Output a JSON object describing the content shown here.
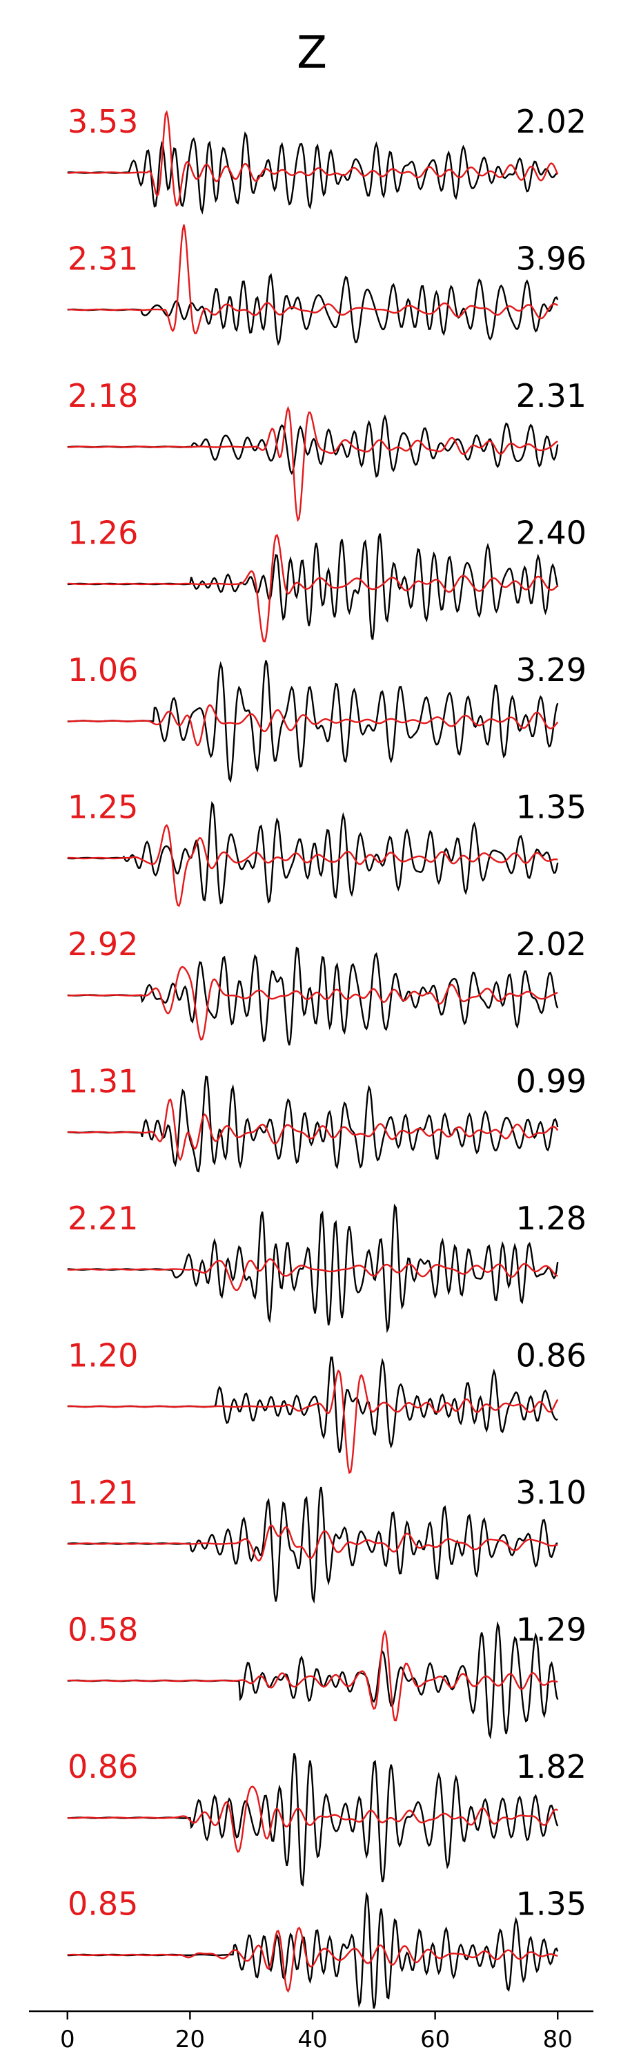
{
  "chart_data": {
    "type": "line",
    "title": "Z",
    "xlabel": "",
    "ylabel": "",
    "xlim": [
      -2,
      82
    ],
    "x_ticks": [
      0,
      20,
      40,
      60,
      80
    ],
    "grid": false,
    "legend": "none",
    "colors": {
      "synthetic": "#e41a1c",
      "observed": "#000000"
    },
    "traces": [
      {
        "left_value": "3.53",
        "right_value": "2.02",
        "red_onset": 13,
        "black_onset": 10,
        "red_peak_time": 14.5,
        "black_peak_time": 20.5
      },
      {
        "left_value": "2.31",
        "right_value": "3.96",
        "red_onset": 16,
        "black_onset": 12,
        "red_peak_time": 18,
        "black_peak_time": 27
      },
      {
        "left_value": "2.18",
        "right_value": "2.31",
        "red_onset": 31,
        "black_onset": 20,
        "red_peak_time": 36.5,
        "black_peak_time": 44.5
      },
      {
        "left_value": "1.26",
        "right_value": "2.40",
        "red_onset": 28,
        "black_onset": 20,
        "red_peak_time": 33,
        "black_peak_time": 48
      },
      {
        "left_value": "1.06",
        "right_value": "3.29",
        "red_onset": 13,
        "black_onset": 14,
        "red_peak_time": 20.5,
        "black_peak_time": 27
      },
      {
        "left_value": "1.25",
        "right_value": "1.35",
        "red_onset": 10,
        "black_onset": 9,
        "red_peak_time": 19,
        "black_peak_time": 26
      },
      {
        "left_value": "2.92",
        "right_value": "2.02",
        "red_onset": 12,
        "black_onset": 12,
        "red_peak_time": 21,
        "black_peak_time": 27
      },
      {
        "left_value": "1.31",
        "right_value": "0.99",
        "red_onset": 13,
        "black_onset": 12,
        "red_peak_time": 19,
        "black_peak_time": 19.5
      },
      {
        "left_value": "2.21",
        "right_value": "1.28",
        "red_onset": 20,
        "black_onset": 17,
        "red_peak_time": 29.5,
        "black_peak_time": 35
      },
      {
        "left_value": "1.20",
        "right_value": "0.86",
        "red_onset": 35,
        "black_onset": 24,
        "red_peak_time": 46,
        "black_peak_time": 46
      },
      {
        "left_value": "1.21",
        "right_value": "3.10",
        "red_onset": 27,
        "black_onset": 20,
        "red_peak_time": 35.5,
        "black_peak_time": 35.5
      },
      {
        "left_value": "0.58",
        "right_value": "1.29",
        "red_onset": 27,
        "black_onset": 28,
        "red_peak_time": 51,
        "black_peak_time": 70
      },
      {
        "left_value": "0.86",
        "right_value": "1.82",
        "red_onset": 17,
        "black_onset": 20,
        "red_peak_time": 30.5,
        "black_peak_time": 38
      },
      {
        "left_value": "0.85",
        "right_value": "1.35",
        "red_onset": 18,
        "black_onset": 27,
        "red_peak_time": 35,
        "black_peak_time": 48
      }
    ]
  }
}
